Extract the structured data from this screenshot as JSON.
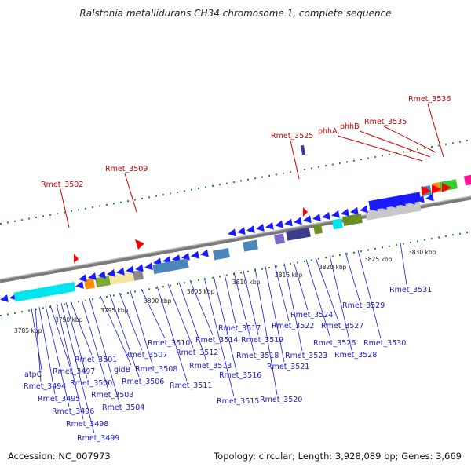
{
  "title": "Ralstonia metallidurans CH34 chromosome 1, complete sequence",
  "footer": {
    "accession": "Accession: NC_007973",
    "stats": "Topology: circular; Length: 3,928,089 bp; Genes: 3,669"
  },
  "colors": {
    "forward": "#1a1aff",
    "reverse": "#1a1aff",
    "highlight_label": "#cc0000",
    "gene_label": "#1a1acc",
    "tick": "#2a8a2a",
    "ruler": "#888888"
  },
  "ruler": {
    "ticks": [
      {
        "label": "3785 kbp"
      },
      {
        "label": "3790 kbp"
      },
      {
        "label": "3795 kbp"
      },
      {
        "label": "3800 kbp"
      },
      {
        "label": "3805 kbp"
      },
      {
        "label": "3810 kbp"
      },
      {
        "label": "3815 kbp"
      },
      {
        "label": "3820 kbp"
      },
      {
        "label": "3825 kbp"
      },
      {
        "label": "3830 kbp"
      }
    ]
  },
  "highlighted_genes": [
    {
      "label": "Rmet_3502"
    },
    {
      "label": "Rmet_3509"
    },
    {
      "label": "Rmet_3525"
    },
    {
      "label": "phhA"
    },
    {
      "label": "phhB"
    },
    {
      "label": "Rmet_3535"
    },
    {
      "label": "Rmet_3536"
    }
  ],
  "gene_labels": [
    {
      "label": "atpC"
    },
    {
      "label": "Rmet_3494"
    },
    {
      "label": "Rmet_3495"
    },
    {
      "label": "Rmet_3496"
    },
    {
      "label": "Rmet_3497"
    },
    {
      "label": "Rmet_3498"
    },
    {
      "label": "Rmet_3499"
    },
    {
      "label": "Rmet_3500"
    },
    {
      "label": "Rmet_3501"
    },
    {
      "label": "Rmet_3503"
    },
    {
      "label": "Rmet_3504"
    },
    {
      "label": "gidB"
    },
    {
      "label": "Rmet_3506"
    },
    {
      "label": "Rmet_3507"
    },
    {
      "label": "Rmet_3508"
    },
    {
      "label": "Rmet_3510"
    },
    {
      "label": "Rmet_3511"
    },
    {
      "label": "Rmet_3512"
    },
    {
      "label": "Rmet_3513"
    },
    {
      "label": "Rmet_3514"
    },
    {
      "label": "Rmet_3515"
    },
    {
      "label": "Rmet_3516"
    },
    {
      "label": "Rmet_3517"
    },
    {
      "label": "Rmet_3518"
    },
    {
      "label": "Rmet_3519"
    },
    {
      "label": "Rmet_3520"
    },
    {
      "label": "Rmet_3521"
    },
    {
      "label": "Rmet_3522"
    },
    {
      "label": "Rmet_3523"
    },
    {
      "label": "Rmet_3524"
    },
    {
      "label": "Rmet_3526"
    },
    {
      "label": "Rmet_3527"
    },
    {
      "label": "Rmet_3528"
    },
    {
      "label": "Rmet_3529"
    },
    {
      "label": "Rmet_3530"
    },
    {
      "label": "Rmet_3531"
    }
  ]
}
